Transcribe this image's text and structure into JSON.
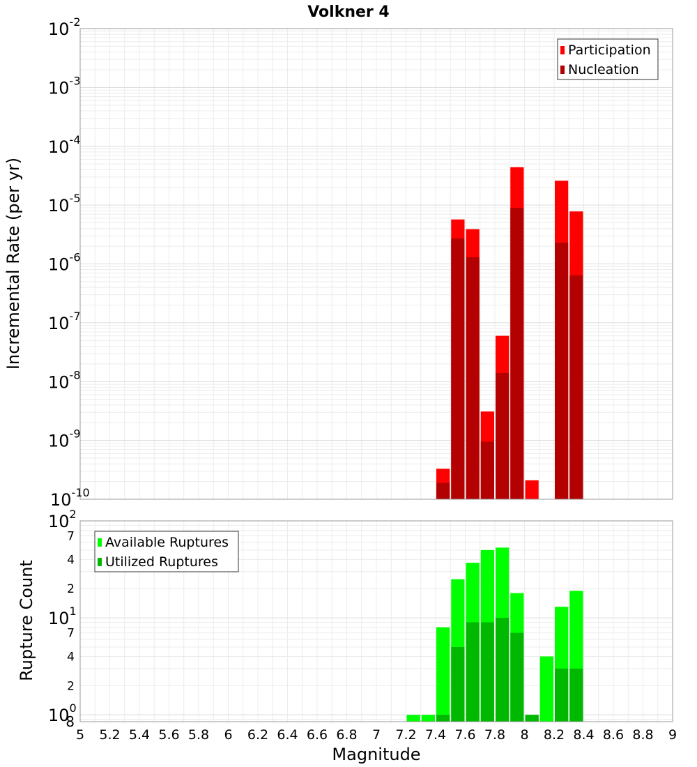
{
  "chart_data": [
    {
      "type": "bar",
      "title": "Volkner 4",
      "ylabel": "Incremental Rate (per yr)",
      "yscale": "log",
      "ylim": [
        1e-10,
        0.01
      ],
      "xlim": [
        5,
        9
      ],
      "bar_width": 0.1,
      "series": [
        {
          "name": "Participation",
          "color": "#ff0000",
          "x": [
            7.45,
            7.55,
            7.65,
            7.75,
            7.85,
            7.95,
            8.05,
            8.25,
            8.35
          ],
          "values": [
            3.3e-10,
            5.7e-06,
            3.9e-06,
            3.1e-09,
            6e-08,
            4.4e-05,
            2.1e-10,
            2.6e-05,
            7.8e-06
          ]
        },
        {
          "name": "Nucleation",
          "color": "#b30000",
          "x": [
            7.45,
            7.55,
            7.65,
            7.75,
            7.85,
            7.95,
            8.25,
            8.35
          ],
          "values": [
            1.9e-10,
            2.7e-06,
            1.3e-06,
            9.5e-10,
            1.4e-08,
            9e-06,
            2.3e-06,
            6.4e-07
          ]
        }
      ],
      "y_ticks": [
        {
          "base": "10",
          "exp": "-10"
        },
        {
          "base": "10",
          "exp": "-9"
        },
        {
          "base": "10",
          "exp": "-8"
        },
        {
          "base": "10",
          "exp": "-7"
        },
        {
          "base": "10",
          "exp": "-6"
        },
        {
          "base": "10",
          "exp": "-5"
        },
        {
          "base": "10",
          "exp": "-4"
        },
        {
          "base": "10",
          "exp": "-3"
        },
        {
          "base": "10",
          "exp": "-2"
        }
      ],
      "legend": {
        "placement": "top-right",
        "entries": [
          "Participation",
          "Nucleation"
        ]
      },
      "grid": true
    },
    {
      "type": "bar",
      "xlabel": "Magnitude",
      "ylabel": "Rupture Count",
      "yscale": "log",
      "ylim": [
        0.85,
        100
      ],
      "xlim": [
        5,
        9
      ],
      "bar_width": 0.1,
      "series": [
        {
          "name": "Available Ruptures",
          "color": "#00ff00",
          "x": [
            7.25,
            7.35,
            7.45,
            7.55,
            7.65,
            7.75,
            7.85,
            7.95,
            8.05,
            8.15,
            8.25,
            8.35
          ],
          "values": [
            1,
            1,
            8,
            25,
            37,
            50,
            53,
            18,
            1,
            4,
            13,
            19
          ]
        },
        {
          "name": "Utilized Ruptures",
          "color": "#00b800",
          "x": [
            7.45,
            7.55,
            7.65,
            7.75,
            7.85,
            7.95,
            8.05,
            8.25,
            8.35
          ],
          "values": [
            1,
            5,
            9,
            9,
            10,
            7,
            1,
            3,
            3
          ]
        }
      ],
      "y_ticks": [
        {
          "base": "10",
          "exp": "0"
        },
        {
          "base": "10",
          "exp": "1"
        },
        {
          "base": "10",
          "exp": "2"
        }
      ],
      "y_minor_labels": [
        {
          "value": 0.8,
          "label": "8"
        },
        {
          "value": 2,
          "label": "2"
        },
        {
          "value": 4,
          "label": "4"
        },
        {
          "value": 7,
          "label": "7"
        },
        {
          "value": 20,
          "label": "2"
        },
        {
          "value": 40,
          "label": "4"
        },
        {
          "value": 70,
          "label": "7"
        }
      ],
      "x_ticks": [
        "5",
        "5.2",
        "5.4",
        "5.6",
        "5.8",
        "6",
        "6.2",
        "6.4",
        "6.6",
        "6.8",
        "7",
        "7.2",
        "7.4",
        "7.6",
        "7.8",
        "8",
        "8.2",
        "8.4",
        "8.6",
        "8.8",
        "9"
      ],
      "legend": {
        "placement": "top-left",
        "entries": [
          "Available Ruptures",
          "Utilized Ruptures"
        ]
      },
      "grid": true
    }
  ]
}
